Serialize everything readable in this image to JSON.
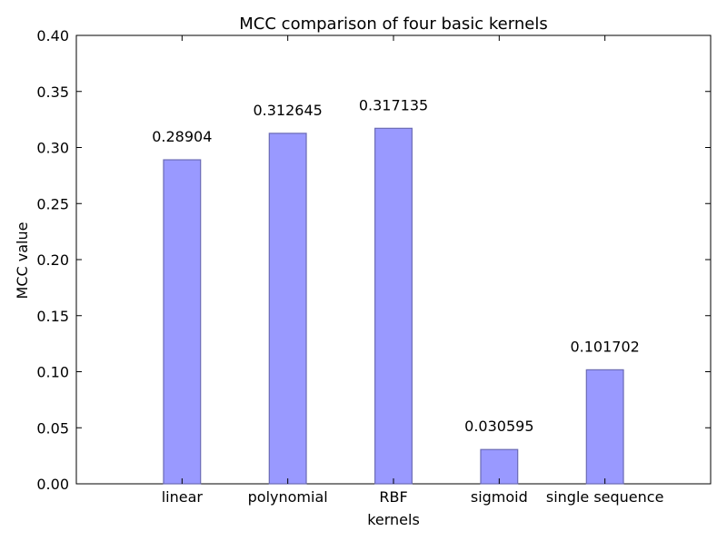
{
  "chart_data": {
    "type": "bar",
    "title": "MCC comparison of four basic kernels",
    "xlabel": "kernels",
    "ylabel": "MCC value",
    "categories": [
      "linear",
      "polynomial",
      "RBF",
      "sigmoid",
      "single sequence"
    ],
    "values": [
      0.28904,
      0.312645,
      0.317135,
      0.030595,
      0.101702
    ],
    "data_labels": [
      "0.28904",
      "0.312645",
      "0.317135",
      "0.030595",
      "0.101702"
    ],
    "ylim": [
      0,
      0.4
    ],
    "y_ticks": [
      "0.00",
      "0.05",
      "0.10",
      "0.15",
      "0.20",
      "0.25",
      "0.30",
      "0.35",
      "0.40"
    ],
    "grid": false,
    "legend": "none",
    "bar_fill": "#9999ff",
    "bar_edge": "#6b6bb5"
  }
}
